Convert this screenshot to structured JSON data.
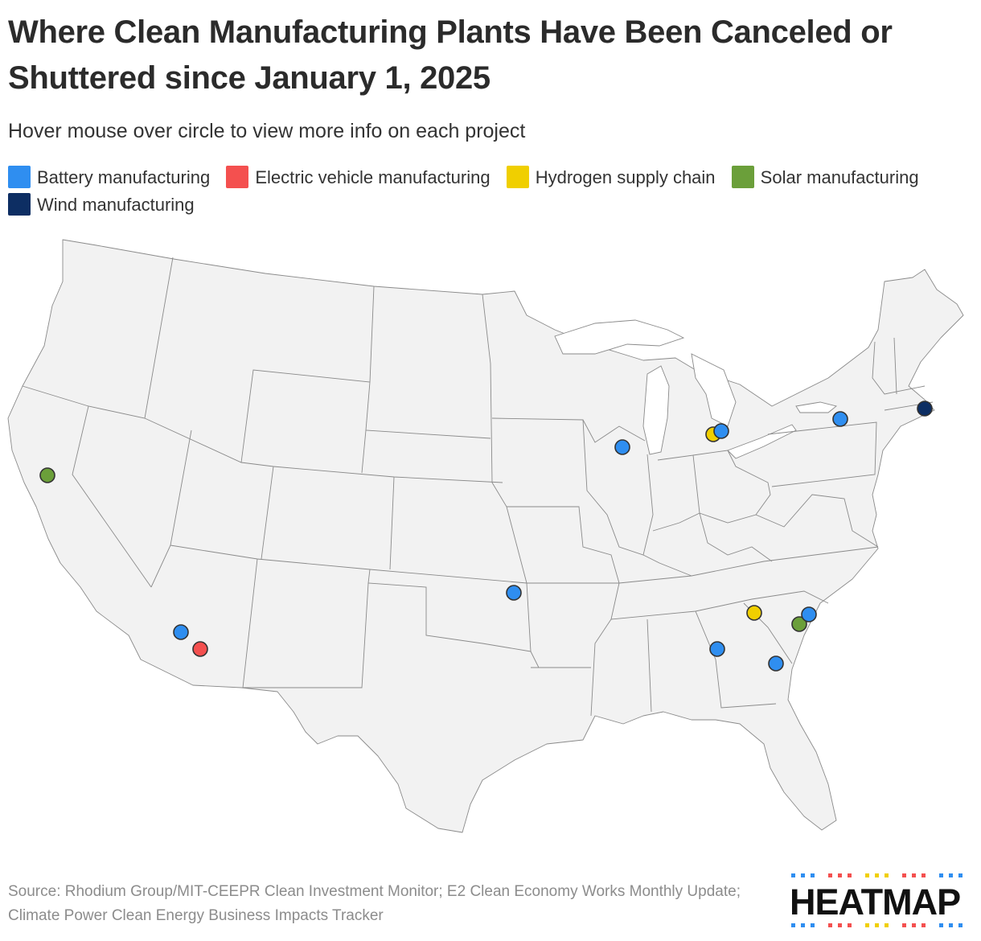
{
  "title": "Where Clean Manufacturing Plants Have Been Canceled or Shuttered since January 1, 2025",
  "subtitle": "Hover mouse over circle to view more info on each project",
  "legend": [
    {
      "label": "Battery manufacturing",
      "color": "#2f8ef0"
    },
    {
      "label": "Electric vehicle manufacturing",
      "color": "#f4504f"
    },
    {
      "label": "Hydrogen supply chain",
      "color": "#f0cf00"
    },
    {
      "label": "Solar manufacturing",
      "color": "#6b9f3a"
    },
    {
      "label": "Wind manufacturing",
      "color": "#0d2e63"
    }
  ],
  "points": [
    {
      "category": "Solar manufacturing",
      "near": "Northern California"
    },
    {
      "category": "Battery manufacturing",
      "near": "Central Arizona"
    },
    {
      "category": "Electric vehicle manufacturing",
      "near": "Southern Arizona"
    },
    {
      "category": "Battery manufacturing",
      "near": "Central Oklahoma"
    },
    {
      "category": "Battery manufacturing",
      "near": "Northern Illinois"
    },
    {
      "category": "Hydrogen supply chain",
      "near": "Southeast Michigan"
    },
    {
      "category": "Battery manufacturing",
      "near": "Southeast Michigan"
    },
    {
      "category": "Battery manufacturing",
      "near": "Central New York"
    },
    {
      "category": "Wind manufacturing",
      "near": "Rhode Island"
    },
    {
      "category": "Hydrogen supply chain",
      "near": "Western South Carolina"
    },
    {
      "category": "Solar manufacturing",
      "near": "Central South Carolina"
    },
    {
      "category": "Battery manufacturing",
      "near": "Central South Carolina"
    },
    {
      "category": "Battery manufacturing",
      "near": "Western Georgia"
    },
    {
      "category": "Battery manufacturing",
      "near": "Southeast Georgia"
    }
  ],
  "source": "Source: Rhodium Group/MIT-CEEPR Clean Investment Monitor; E2 Clean Economy Works Monthly Update; Climate Power Clean Energy Business Impacts Tracker",
  "logo": {
    "text": "HEATMAP",
    "dash_colors": [
      "#2f8ef0",
      "#f4504f",
      "#f0cf00",
      "#f4504f",
      "#2f8ef0"
    ]
  }
}
